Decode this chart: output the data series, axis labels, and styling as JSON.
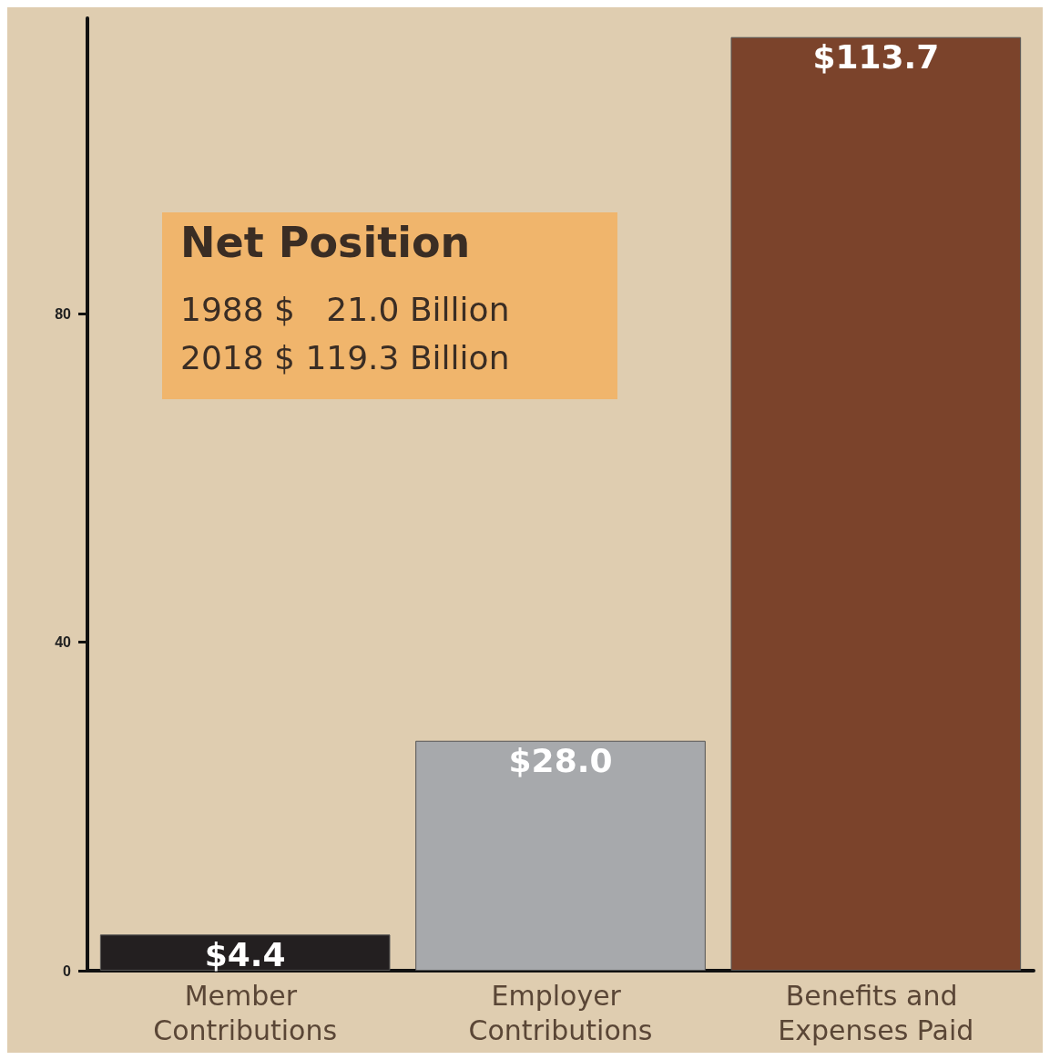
{
  "chart_data": {
    "type": "bar",
    "categories": [
      "Member Contributions",
      "Employer Contributions",
      "Benefits and Expenses Paid"
    ],
    "values": [
      4.4,
      28.0,
      113.7
    ],
    "colors": [
      "#231f20",
      "#a7a9ac",
      "#7b432b"
    ],
    "value_labels": [
      "$4.4",
      "$28.0",
      "$113.7"
    ],
    "ylim": [
      0,
      116
    ],
    "yticks": [
      0,
      40,
      80
    ],
    "grid": false,
    "annotations": [
      "Net Position",
      "1988 $   21.0 Billion",
      "2018 $ 119.3 Billion"
    ]
  }
}
